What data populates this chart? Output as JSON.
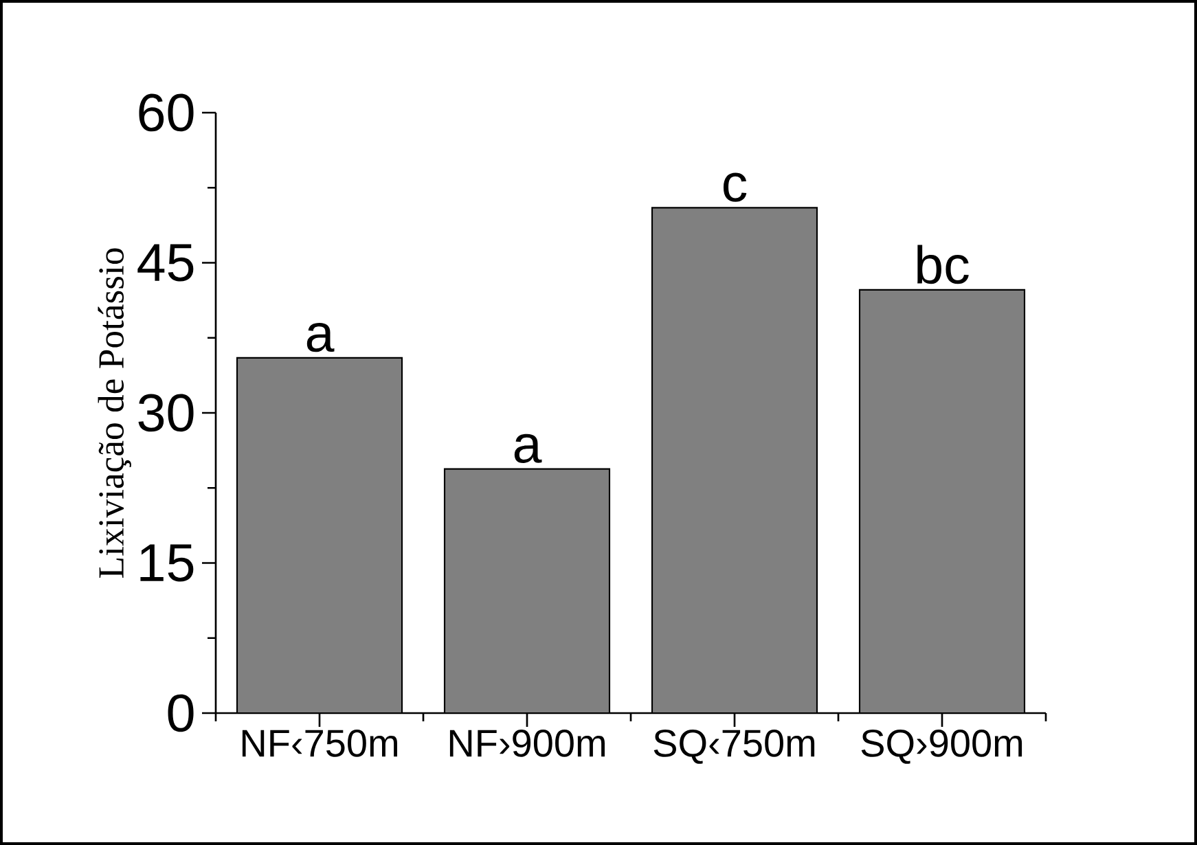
{
  "chart_data": {
    "type": "bar",
    "ylabel": "Lixiviação de Potássio",
    "categories": [
      "NF‹750m",
      "NF›900m",
      "SQ‹750m",
      "SQ›900m"
    ],
    "values": [
      35.5,
      24.4,
      50.5,
      42.3
    ],
    "color": "#808080",
    "ylim": [
      0,
      60
    ],
    "yticks": [
      0,
      {
        "value": 7.5,
        "label": null
      },
      15,
      {
        "value": 22.5,
        "label": null
      },
      30,
      {
        "value": 37.5,
        "label": null
      },
      45,
      {
        "value": 52.5,
        "label": null
      },
      60
    ],
    "annotations": [
      {
        "text": "a",
        "x": "NF‹750m",
        "y": 35.5
      },
      {
        "text": "a",
        "x": "NF›900m",
        "y": 24.4
      },
      {
        "text": "c",
        "x": "SQ‹750m",
        "y": 50.5
      },
      {
        "text": "bc",
        "x": "SQ›900m",
        "y": 42.3
      }
    ]
  }
}
